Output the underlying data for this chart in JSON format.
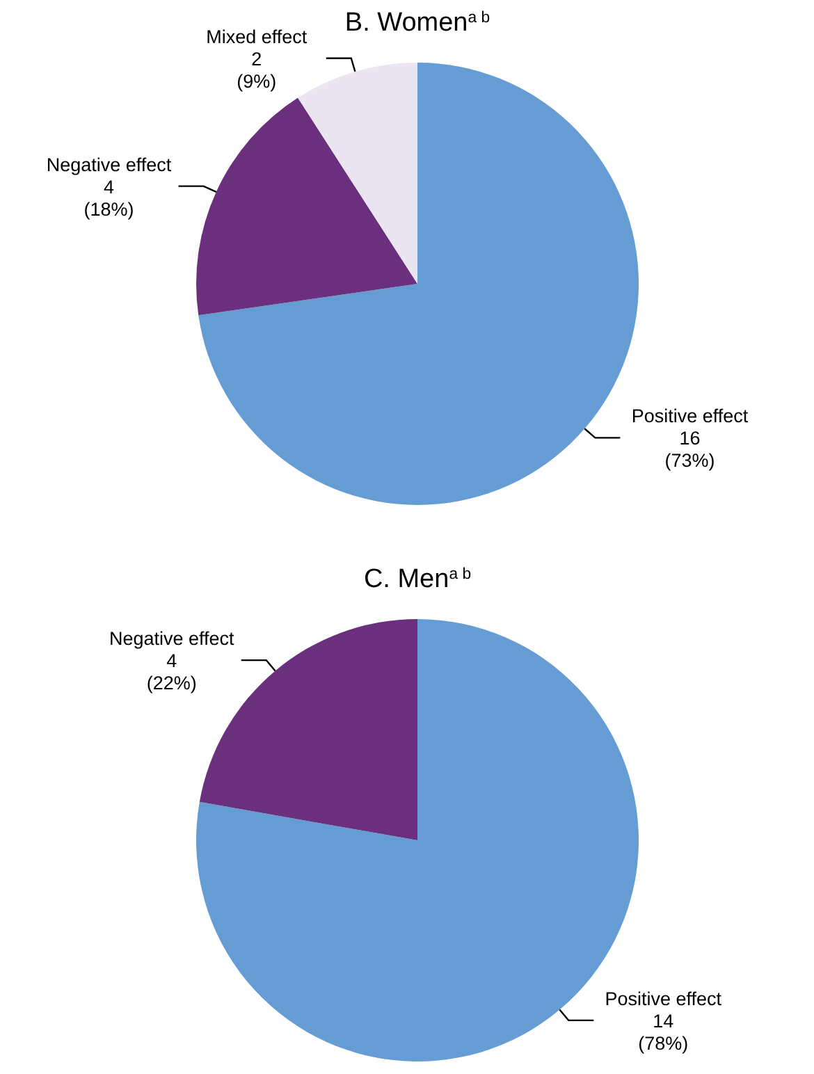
{
  "chart_data": [
    {
      "type": "pie",
      "title": "B. Women$^{a b}$",
      "categories": [
        "Positive effect",
        "Negative effect",
        "Mixed effect"
      ],
      "values": [
        16,
        4,
        2
      ],
      "colors": [
        "#669cd4",
        "#6a2f7d",
        "#ebe5f1"
      ],
      "value_labels": [
        "16\n(73%)",
        "4\n(18%)",
        "2\n(9%)"
      ]
    },
    {
      "type": "pie",
      "title": "C. Men$^{a b}$",
      "categories": [
        "Positive effect",
        "Negative effect"
      ],
      "values": [
        14,
        4
      ],
      "colors": [
        "#669cd4",
        "#6a2f7d"
      ],
      "value_labels": [
        "14\n(78%)",
        "4\n(22%)"
      ]
    }
  ]
}
